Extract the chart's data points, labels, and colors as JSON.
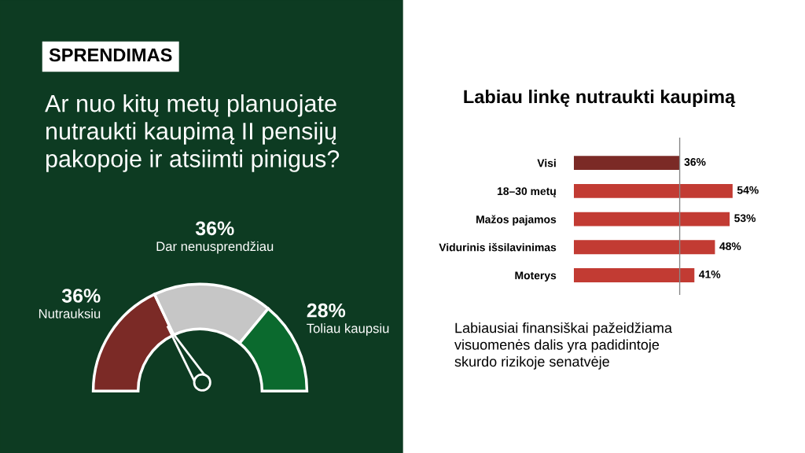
{
  "chart_data": [
    {
      "type": "donut",
      "annotations": [
        "SPRENDIMAS"
      ],
      "title": "Ar nuo kitų metų planuojate nutraukti kaupimą II pensijų pakopoje ir atsiimti pinigus?",
      "categories": [
        "Nutrauksiu",
        "Dar nenusprendžiau",
        "Toliau kaupsiu"
      ],
      "values": [
        36,
        36,
        28
      ],
      "value_labels": [
        "36%",
        "36%",
        "28%"
      ],
      "colors": [
        "#7b2a26",
        "#c6c6c6",
        "#0b6a2e"
      ],
      "needle": "Nutrauksiu"
    },
    {
      "type": "bar",
      "orientation": "horizontal",
      "title": "Labiau linkę nutraukti kaupimą",
      "categories": [
        "Visi",
        "18–30 metų",
        "Mažos pajamos",
        "Vidurinis išsilavinimas",
        "Moterys"
      ],
      "values": [
        36,
        54,
        53,
        48,
        41
      ],
      "value_labels": [
        "36%",
        "54%",
        "53%",
        "48%",
        "41%"
      ],
      "colors": [
        "#7b2a26",
        "#c23b33",
        "#c23b33",
        "#c23b33",
        "#c23b33"
      ],
      "tick_labels": "y",
      "ref_lines": [
        {
          "axis": "x",
          "value": 36,
          "color": "#888888"
        }
      ],
      "annotations": [
        "Labiausiai finansiškai pažeidžiama visuomenės dalis yra padidintoje skurdo rizikoje senatvėje"
      ]
    }
  ]
}
